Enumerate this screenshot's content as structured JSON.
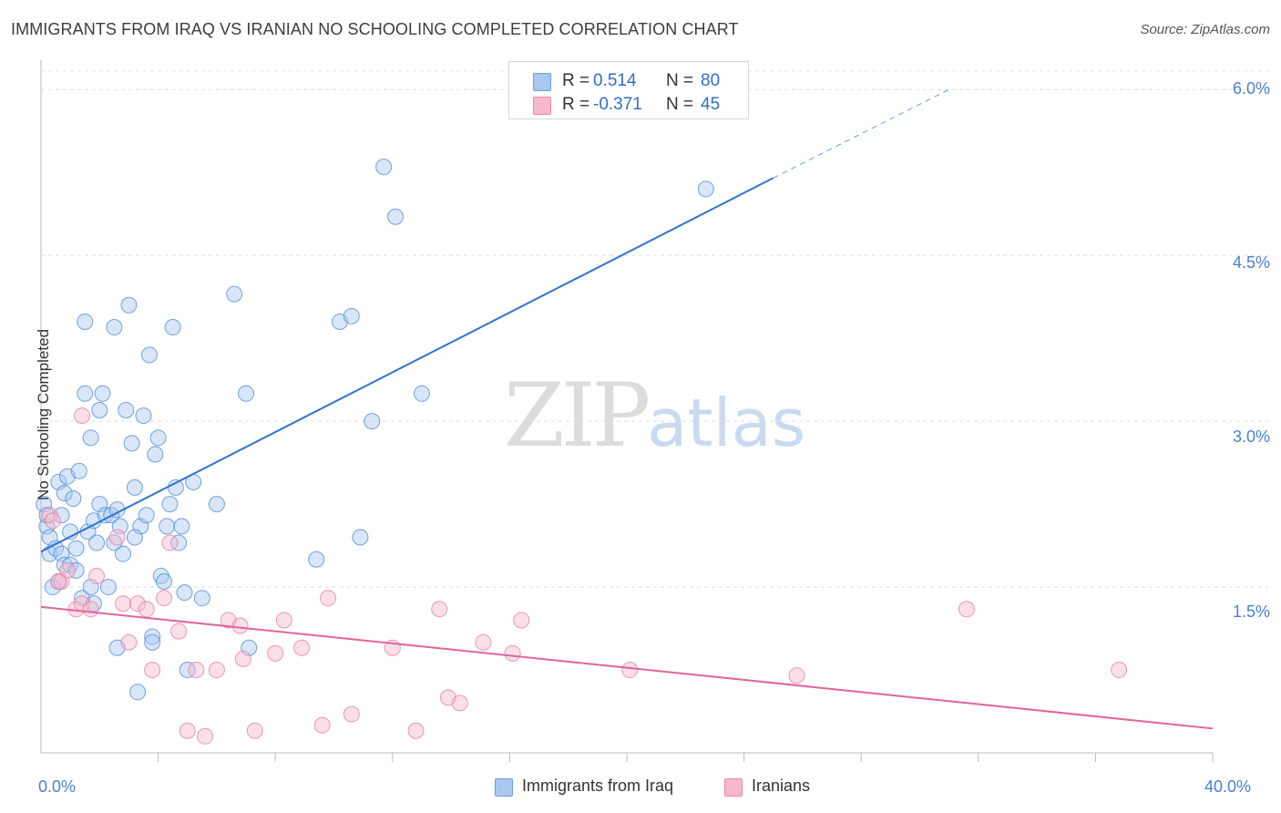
{
  "title": "IMMIGRANTS FROM IRAQ VS IRANIAN NO SCHOOLING COMPLETED CORRELATION CHART",
  "source": "Source: ZipAtlas.com",
  "watermark": {
    "zip": "ZIP",
    "atlas": "atlas"
  },
  "legend_top": [
    {
      "r_label": "R =",
      "r_value": "0.514",
      "n_label": "N =",
      "n_value": "80",
      "color": "#a9c8f0"
    },
    {
      "r_label": "R =",
      "r_value": "-0.371",
      "n_label": "N =",
      "n_value": "45",
      "color": "#f6b8cc"
    }
  ],
  "legend_bottom": [
    {
      "label": "Immigrants from Iraq",
      "color": "#a9c8f0"
    },
    {
      "label": "Iranians",
      "color": "#f6b8cc"
    }
  ],
  "chart_data": {
    "type": "scatter",
    "ylabel": "No Schooling Completed",
    "xlabel": "",
    "xlim": [
      0,
      40
    ],
    "ylim": [
      0,
      6.2
    ],
    "x_tick_labels": [
      {
        "value": 0,
        "label": "0.0%"
      },
      {
        "value": 40,
        "label": "40.0%"
      }
    ],
    "y_tick_labels": [
      {
        "value": 1.5,
        "label": "1.5%"
      },
      {
        "value": 3.0,
        "label": "3.0%"
      },
      {
        "value": 4.5,
        "label": "4.5%"
      },
      {
        "value": 6.0,
        "label": "6.0%"
      }
    ],
    "grid": true,
    "series": [
      {
        "name": "Immigrants from Iraq",
        "color": "#4a86d6",
        "fill": "#a9c8f0",
        "trend": {
          "x0": 0,
          "y0": 1.82,
          "x1": 25,
          "y1": 5.2,
          "dashed_to_x": 31,
          "dashed_to_y": 6.0,
          "color": "#2e74d0"
        },
        "points": [
          [
            0.1,
            2.25
          ],
          [
            0.2,
            2.05
          ],
          [
            0.2,
            2.15
          ],
          [
            0.3,
            1.95
          ],
          [
            0.3,
            1.8
          ],
          [
            0.4,
            1.5
          ],
          [
            0.5,
            1.85
          ],
          [
            0.6,
            2.45
          ],
          [
            0.6,
            1.55
          ],
          [
            0.7,
            2.15
          ],
          [
            0.7,
            1.8
          ],
          [
            0.8,
            1.7
          ],
          [
            0.8,
            2.35
          ],
          [
            0.9,
            2.5
          ],
          [
            1.0,
            2.0
          ],
          [
            1.0,
            1.7
          ],
          [
            1.1,
            2.3
          ],
          [
            1.2,
            1.85
          ],
          [
            1.2,
            1.65
          ],
          [
            1.3,
            2.55
          ],
          [
            1.4,
            1.4
          ],
          [
            1.5,
            3.25
          ],
          [
            1.5,
            3.9
          ],
          [
            1.6,
            2.0
          ],
          [
            1.7,
            1.5
          ],
          [
            1.7,
            2.85
          ],
          [
            1.8,
            1.35
          ],
          [
            1.8,
            2.1
          ],
          [
            1.9,
            1.9
          ],
          [
            2.0,
            3.1
          ],
          [
            2.0,
            2.25
          ],
          [
            2.1,
            3.25
          ],
          [
            2.2,
            2.15
          ],
          [
            2.3,
            1.5
          ],
          [
            2.4,
            2.15
          ],
          [
            2.5,
            1.9
          ],
          [
            2.5,
            3.85
          ],
          [
            2.6,
            2.2
          ],
          [
            2.6,
            0.95
          ],
          [
            2.7,
            2.05
          ],
          [
            2.8,
            1.8
          ],
          [
            2.9,
            3.1
          ],
          [
            3.0,
            4.05
          ],
          [
            3.1,
            2.8
          ],
          [
            3.2,
            2.4
          ],
          [
            3.3,
            0.55
          ],
          [
            3.4,
            2.05
          ],
          [
            3.5,
            3.05
          ],
          [
            3.6,
            2.15
          ],
          [
            3.7,
            3.6
          ],
          [
            3.8,
            1.05
          ],
          [
            3.8,
            1.0
          ],
          [
            3.9,
            2.7
          ],
          [
            4.0,
            2.85
          ],
          [
            4.1,
            1.6
          ],
          [
            4.2,
            1.55
          ],
          [
            4.3,
            2.05
          ],
          [
            4.4,
            2.25
          ],
          [
            4.5,
            3.85
          ],
          [
            4.6,
            2.4
          ],
          [
            4.7,
            1.9
          ],
          [
            4.8,
            2.05
          ],
          [
            4.9,
            1.45
          ],
          [
            5.0,
            0.75
          ],
          [
            5.2,
            2.45
          ],
          [
            5.5,
            1.4
          ],
          [
            6.0,
            2.25
          ],
          [
            6.6,
            4.15
          ],
          [
            7.0,
            3.25
          ],
          [
            7.1,
            0.95
          ],
          [
            9.4,
            1.75
          ],
          [
            10.2,
            3.9
          ],
          [
            10.6,
            3.95
          ],
          [
            10.9,
            1.95
          ],
          [
            11.3,
            3.0
          ],
          [
            11.7,
            5.3
          ],
          [
            12.1,
            4.85
          ],
          [
            13.0,
            3.25
          ],
          [
            22.7,
            5.1
          ],
          [
            3.2,
            1.95
          ]
        ]
      },
      {
        "name": "Iranians",
        "color": "#e37a9d",
        "fill": "#f6b8cc",
        "trend": {
          "x0": 0,
          "y0": 1.32,
          "x1": 40,
          "y1": 0.22,
          "color": "#e0659a"
        },
        "points": [
          [
            0.3,
            2.15
          ],
          [
            0.4,
            2.1
          ],
          [
            0.7,
            1.55
          ],
          [
            0.9,
            1.65
          ],
          [
            1.2,
            1.3
          ],
          [
            1.4,
            1.35
          ],
          [
            1.4,
            3.05
          ],
          [
            1.7,
            1.3
          ],
          [
            1.9,
            1.6
          ],
          [
            2.6,
            1.95
          ],
          [
            2.8,
            1.35
          ],
          [
            3.0,
            1.0
          ],
          [
            3.3,
            1.35
          ],
          [
            3.6,
            1.3
          ],
          [
            3.8,
            0.75
          ],
          [
            4.2,
            1.4
          ],
          [
            4.4,
            1.9
          ],
          [
            4.7,
            1.1
          ],
          [
            5.0,
            0.2
          ],
          [
            5.3,
            0.75
          ],
          [
            5.6,
            0.15
          ],
          [
            6.0,
            0.75
          ],
          [
            6.4,
            1.2
          ],
          [
            6.8,
            1.15
          ],
          [
            6.9,
            0.85
          ],
          [
            7.3,
            0.2
          ],
          [
            8.0,
            0.9
          ],
          [
            8.3,
            1.2
          ],
          [
            8.9,
            0.95
          ],
          [
            9.6,
            0.25
          ],
          [
            9.8,
            1.4
          ],
          [
            10.6,
            0.35
          ],
          [
            12.0,
            0.95
          ],
          [
            12.8,
            0.2
          ],
          [
            13.6,
            1.3
          ],
          [
            13.9,
            0.5
          ],
          [
            14.3,
            0.45
          ],
          [
            15.1,
            1.0
          ],
          [
            16.1,
            0.9
          ],
          [
            16.4,
            1.2
          ],
          [
            20.1,
            0.75
          ],
          [
            25.8,
            0.7
          ],
          [
            31.6,
            1.3
          ],
          [
            36.8,
            0.75
          ],
          [
            0.6,
            1.55
          ]
        ]
      }
    ]
  }
}
